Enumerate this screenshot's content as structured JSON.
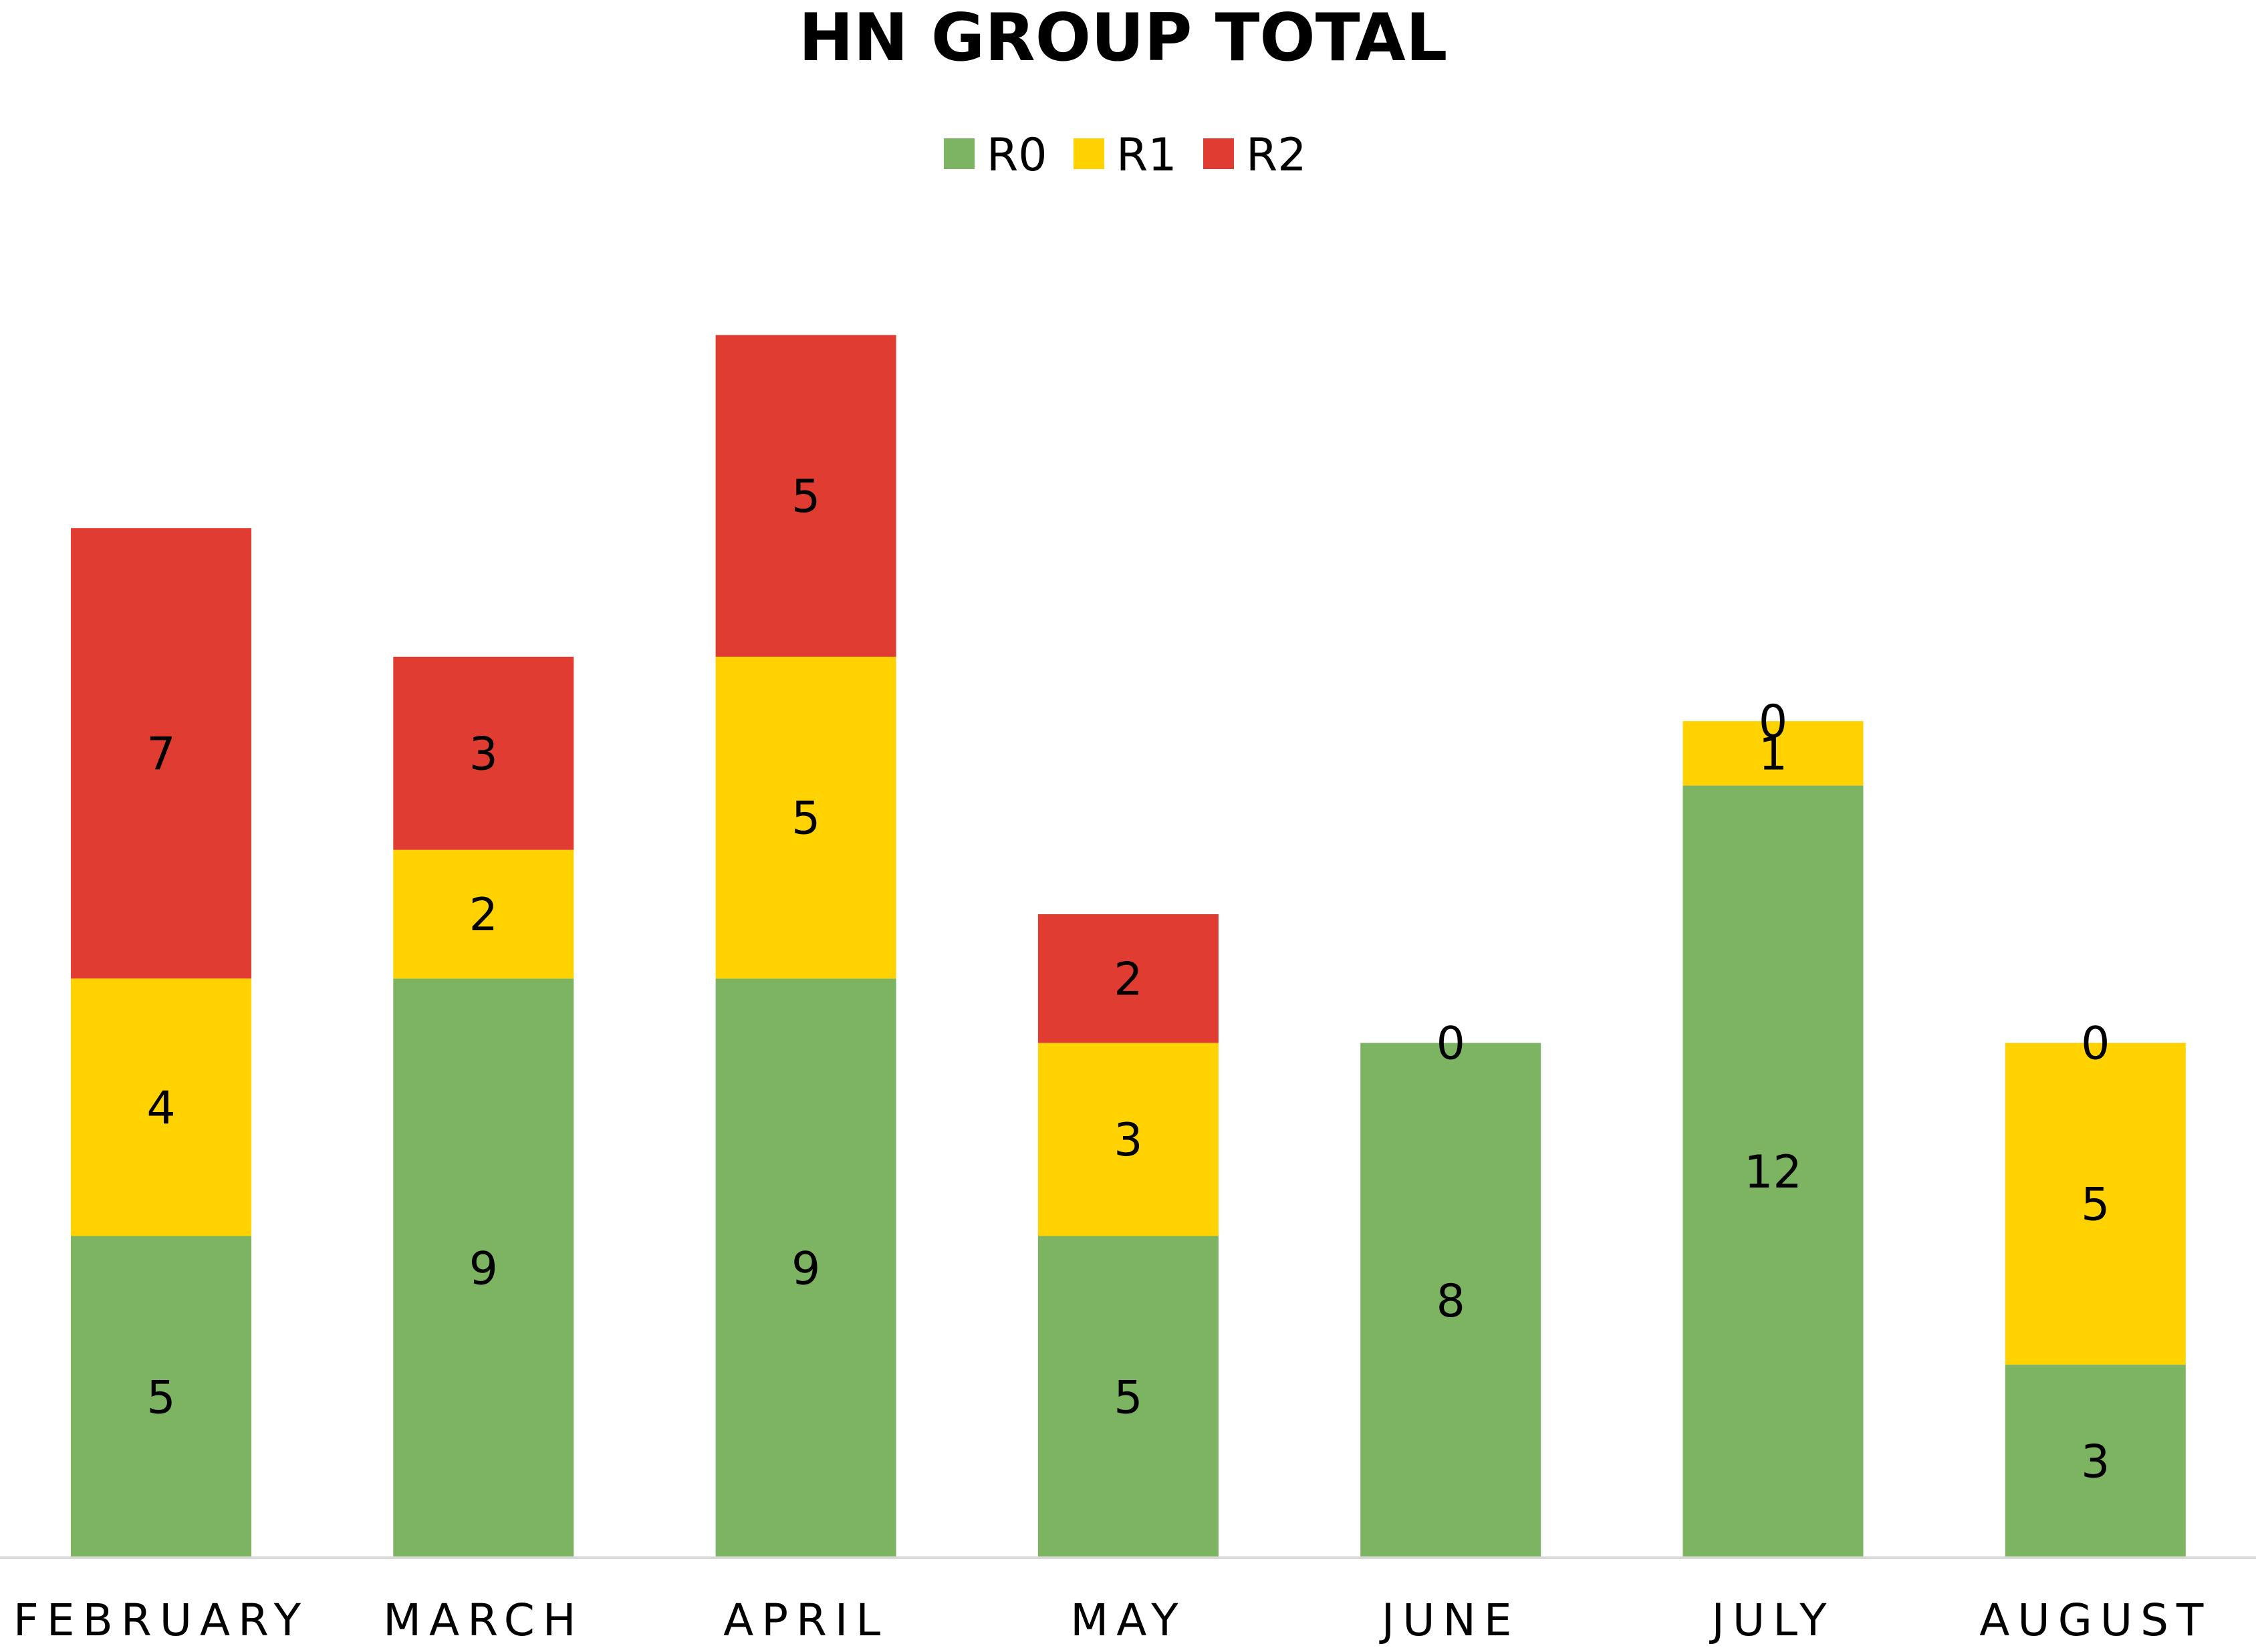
{
  "chart_data": {
    "type": "bar",
    "stacked": true,
    "title": "HN GROUP TOTAL",
    "xlabel": "",
    "ylabel": "",
    "categories": [
      "FEBRUARY",
      "MARCH",
      "APRIL",
      "MAY",
      "JUNE",
      "JULY",
      "AUGUST"
    ],
    "series": [
      {
        "name": "R0",
        "color": "#7CB462",
        "values": [
          5,
          9,
          9,
          5,
          8,
          12,
          3
        ]
      },
      {
        "name": "R1",
        "color": "#FFD200",
        "values": [
          4,
          2,
          5,
          3,
          null,
          1,
          5
        ]
      },
      {
        "name": "R2",
        "color": "#E03C31",
        "values": [
          7,
          3,
          5,
          2,
          0,
          0,
          0
        ]
      }
    ],
    "ylim": [
      0,
      21.5
    ],
    "grid": false,
    "legend": "top-center",
    "axis_color": "#D9D9D9"
  }
}
